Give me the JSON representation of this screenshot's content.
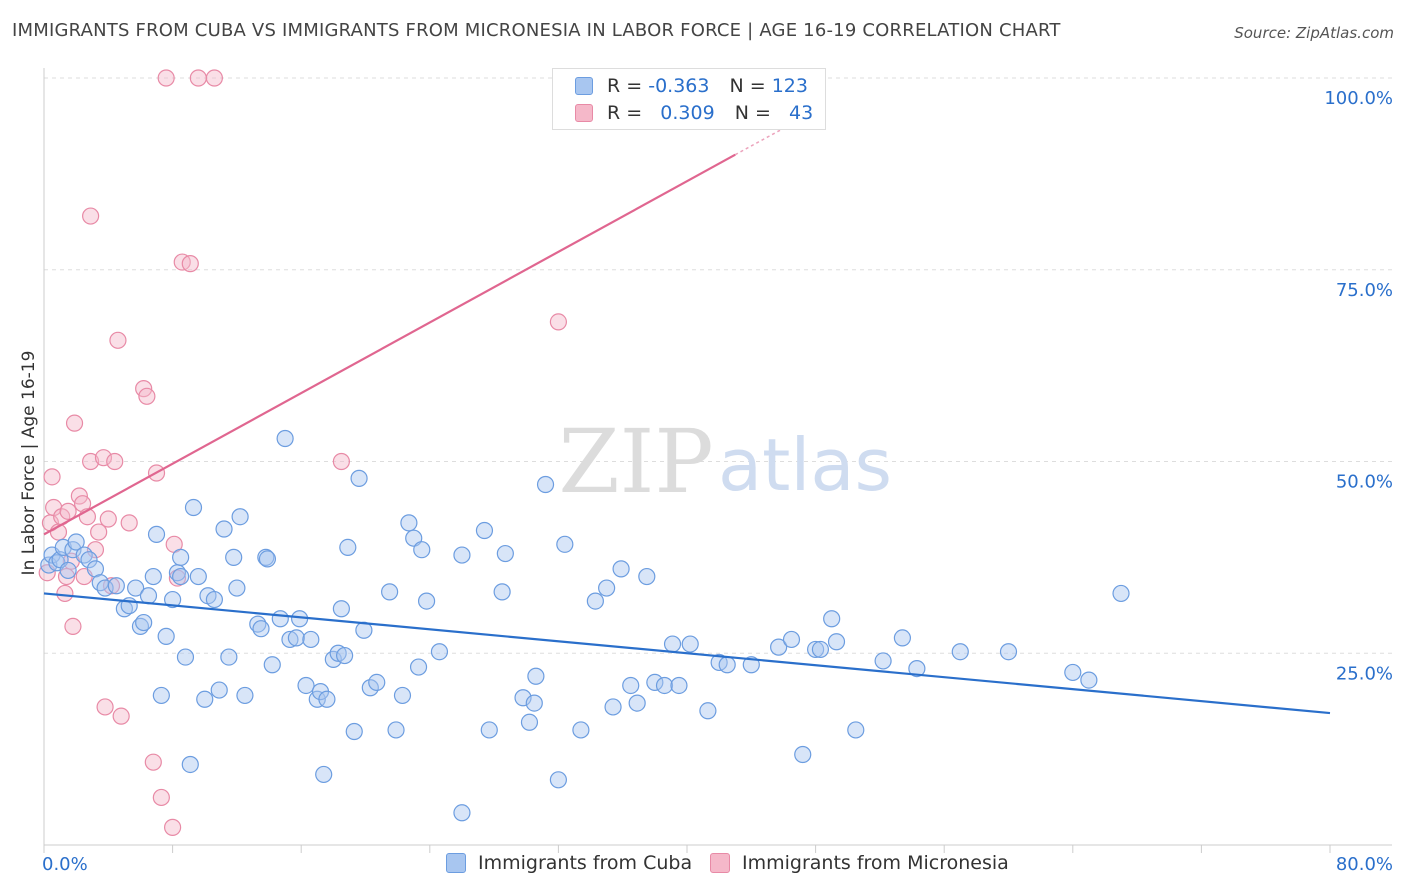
{
  "header": {
    "title": "IMMIGRANTS FROM CUBA VS IMMIGRANTS FROM MICRONESIA IN LABOR FORCE | AGE 16-19 CORRELATION CHART",
    "source": "Source: ZipAtlas.com"
  },
  "watermark": {
    "part1": "ZIP",
    "part2": "atlas"
  },
  "legend": {
    "rows": [
      {
        "r_label": "R =",
        "r_value": "-0.363",
        "n_label": "N =",
        "n_value": "123",
        "color": "#a8c6f0"
      },
      {
        "r_label": "R =",
        "r_value": "0.309",
        "n_label": "N =",
        "n_value": "43",
        "color": "#f5b8c9"
      }
    ]
  },
  "bottom_legend": {
    "cuba": "Immigrants from Cuba",
    "micronesia": "Immigrants from Micronesia"
  },
  "colors": {
    "cuba_fill": "#a8c6f0",
    "cuba_stroke": "#6c9de0",
    "cuba_line": "#2a6fcb",
    "micro_fill": "#f5b8c9",
    "micro_stroke": "#e88aa6",
    "micro_line": "#e06690",
    "axis_label": "#2a6fcb"
  },
  "chart_data": {
    "type": "scatter",
    "title": "IMMIGRANTS FROM CUBA VS IMMIGRANTS FROM MICRONESIA IN LABOR FORCE | AGE 16-19 CORRELATION CHART",
    "xlabel": "",
    "ylabel": "In Labor Force | Age 16-19",
    "xlim": [
      0,
      80
    ],
    "ylim": [
      0,
      100
    ],
    "x_tick_labels": [
      "0.0%",
      "80.0%"
    ],
    "y_ticks": [
      25,
      50,
      75,
      100
    ],
    "y_tick_labels": [
      "25.0%",
      "50.0%",
      "75.0%",
      "100.0%"
    ],
    "series": [
      {
        "name": "Immigrants from Cuba",
        "r": -0.363,
        "n": 123,
        "trend": {
          "x": [
            0,
            80
          ],
          "y": [
            32.8,
            17.2
          ]
        },
        "points": [
          [
            0.3,
            36.5
          ],
          [
            0.5,
            37.8
          ],
          [
            0.8,
            36.8
          ],
          [
            1.0,
            37.2
          ],
          [
            1.2,
            38.8
          ],
          [
            1.5,
            35.8
          ],
          [
            1.8,
            38.5
          ],
          [
            2.0,
            39.5
          ],
          [
            2.5,
            37.8
          ],
          [
            2.8,
            37.2
          ],
          [
            3.2,
            36.0
          ],
          [
            3.5,
            34.2
          ],
          [
            3.8,
            33.5
          ],
          [
            4.5,
            33.8
          ],
          [
            5.0,
            30.8
          ],
          [
            5.3,
            31.2
          ],
          [
            5.7,
            33.5
          ],
          [
            6.0,
            28.5
          ],
          [
            6.2,
            29.0
          ],
          [
            6.5,
            32.5
          ],
          [
            6.8,
            35.0
          ],
          [
            7.0,
            40.5
          ],
          [
            7.3,
            19.5
          ],
          [
            7.6,
            27.2
          ],
          [
            8.0,
            32.0
          ],
          [
            8.3,
            35.5
          ],
          [
            8.5,
            37.5
          ],
          [
            8.8,
            24.5
          ],
          [
            9.1,
            10.5
          ],
          [
            9.3,
            44.0
          ],
          [
            9.6,
            35.0
          ],
          [
            10.0,
            19.0
          ],
          [
            10.2,
            32.5
          ],
          [
            10.6,
            32.0
          ],
          [
            10.9,
            20.2
          ],
          [
            11.2,
            41.2
          ],
          [
            11.5,
            24.5
          ],
          [
            11.8,
            37.5
          ],
          [
            12.0,
            33.5
          ],
          [
            12.2,
            42.8
          ],
          [
            12.5,
            19.5
          ],
          [
            13.3,
            28.8
          ],
          [
            13.5,
            28.2
          ],
          [
            13.8,
            37.5
          ],
          [
            13.9,
            37.3
          ],
          [
            14.2,
            23.5
          ],
          [
            14.7,
            29.5
          ],
          [
            15.0,
            53.0
          ],
          [
            15.3,
            26.8
          ],
          [
            15.7,
            27.0
          ],
          [
            15.9,
            29.5
          ],
          [
            16.3,
            20.8
          ],
          [
            16.6,
            26.8
          ],
          [
            17.0,
            19.0
          ],
          [
            17.2,
            20.0
          ],
          [
            17.4,
            9.2
          ],
          [
            17.6,
            19.0
          ],
          [
            18.0,
            24.2
          ],
          [
            18.3,
            25.0
          ],
          [
            18.5,
            30.8
          ],
          [
            18.7,
            24.7
          ],
          [
            18.9,
            38.8
          ],
          [
            19.3,
            14.8
          ],
          [
            19.6,
            47.8
          ],
          [
            19.9,
            28.0
          ],
          [
            20.3,
            20.5
          ],
          [
            20.7,
            21.2
          ],
          [
            21.5,
            33.0
          ],
          [
            21.9,
            15.0
          ],
          [
            22.3,
            19.5
          ],
          [
            22.7,
            42.0
          ],
          [
            23.0,
            40.0
          ],
          [
            23.3,
            23.2
          ],
          [
            23.5,
            38.5
          ],
          [
            23.8,
            31.8
          ],
          [
            24.6,
            25.2
          ],
          [
            26.0,
            37.8
          ],
          [
            27.4,
            41.0
          ],
          [
            27.7,
            15.0
          ],
          [
            28.5,
            33.0
          ],
          [
            28.7,
            38.0
          ],
          [
            29.8,
            19.2
          ],
          [
            30.2,
            16.0
          ],
          [
            30.5,
            18.5
          ],
          [
            30.6,
            22.0
          ],
          [
            31.2,
            47.0
          ],
          [
            32.0,
            8.5
          ],
          [
            32.4,
            39.2
          ],
          [
            33.4,
            15.0
          ],
          [
            34.3,
            31.8
          ],
          [
            35.0,
            33.5
          ],
          [
            35.4,
            18.0
          ],
          [
            35.9,
            36.0
          ],
          [
            36.5,
            20.8
          ],
          [
            36.9,
            18.5
          ],
          [
            37.5,
            35.0
          ],
          [
            38.0,
            21.2
          ],
          [
            38.6,
            20.8
          ],
          [
            39.1,
            26.2
          ],
          [
            39.5,
            20.8
          ],
          [
            40.2,
            26.2
          ],
          [
            41.3,
            17.5
          ],
          [
            42.0,
            23.8
          ],
          [
            42.5,
            23.5
          ],
          [
            44.0,
            23.5
          ],
          [
            45.7,
            25.8
          ],
          [
            46.5,
            26.8
          ],
          [
            47.2,
            11.8
          ],
          [
            48.0,
            25.5
          ],
          [
            48.3,
            25.5
          ],
          [
            49.0,
            29.5
          ],
          [
            49.3,
            26.5
          ],
          [
            50.5,
            15.0
          ],
          [
            52.2,
            24.0
          ],
          [
            53.4,
            27.0
          ],
          [
            54.3,
            23.0
          ],
          [
            57.0,
            25.2
          ],
          [
            60.0,
            25.2
          ],
          [
            64.0,
            22.5
          ],
          [
            65.0,
            21.5
          ],
          [
            67.0,
            32.8
          ],
          [
            26.0,
            4.2
          ],
          [
            8.5,
            35.0
          ]
        ]
      },
      {
        "name": "Immigrants from Micronesia",
        "r": 0.309,
        "n": 43,
        "trend": {
          "x": [
            0,
            43
          ],
          "y": [
            40.5,
            90.0
          ]
        },
        "points": [
          [
            0.2,
            35.5
          ],
          [
            0.4,
            42.0
          ],
          [
            0.5,
            48.0
          ],
          [
            0.6,
            44.0
          ],
          [
            0.9,
            40.8
          ],
          [
            1.1,
            42.8
          ],
          [
            1.3,
            32.8
          ],
          [
            1.4,
            35.0
          ],
          [
            1.5,
            43.5
          ],
          [
            1.7,
            37.0
          ],
          [
            1.8,
            28.5
          ],
          [
            1.9,
            55.0
          ],
          [
            2.2,
            45.5
          ],
          [
            2.4,
            44.5
          ],
          [
            2.5,
            35.0
          ],
          [
            2.7,
            42.8
          ],
          [
            2.9,
            50.0
          ],
          [
            2.9,
            82.0
          ],
          [
            3.2,
            38.5
          ],
          [
            3.4,
            40.8
          ],
          [
            3.7,
            50.5
          ],
          [
            3.8,
            18.0
          ],
          [
            4.0,
            42.5
          ],
          [
            4.2,
            33.8
          ],
          [
            4.4,
            50.0
          ],
          [
            4.6,
            65.8
          ],
          [
            4.8,
            16.8
          ],
          [
            5.3,
            42.0
          ],
          [
            6.2,
            59.5
          ],
          [
            6.4,
            58.5
          ],
          [
            6.8,
            10.8
          ],
          [
            7.0,
            48.5
          ],
          [
            7.3,
            6.2
          ],
          [
            7.6,
            100.0
          ],
          [
            8.0,
            2.3
          ],
          [
            8.1,
            39.2
          ],
          [
            8.3,
            34.8
          ],
          [
            8.6,
            76.0
          ],
          [
            9.1,
            75.8
          ],
          [
            9.6,
            100.0
          ],
          [
            10.6,
            100.0
          ],
          [
            18.5,
            50.0
          ],
          [
            32.0,
            68.2
          ]
        ]
      }
    ]
  }
}
